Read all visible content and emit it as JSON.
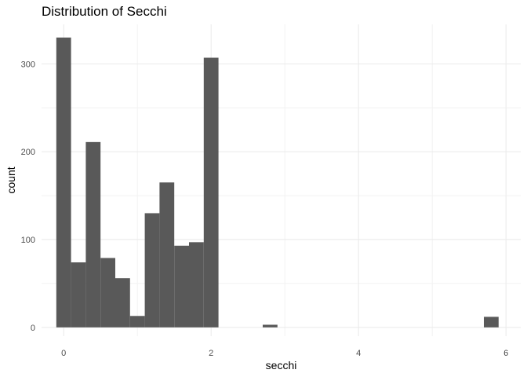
{
  "chart_data": {
    "type": "bar",
    "title": "Distribution of Secchi",
    "xlabel": "secchi",
    "ylabel": "count",
    "xlim": [
      -0.3,
      6.2
    ],
    "ylim": [
      -10,
      345
    ],
    "x_ticks": [
      0,
      2,
      4,
      6
    ],
    "y_ticks": [
      0,
      100,
      200,
      300
    ],
    "grid": true,
    "bar_color": "#595959",
    "bin_width": 0.2,
    "bins": [
      {
        "x": 0.0,
        "count": 330
      },
      {
        "x": 0.2,
        "count": 74
      },
      {
        "x": 0.4,
        "count": 211
      },
      {
        "x": 0.6,
        "count": 79
      },
      {
        "x": 0.8,
        "count": 56
      },
      {
        "x": 1.0,
        "count": 13
      },
      {
        "x": 1.2,
        "count": 130
      },
      {
        "x": 1.4,
        "count": 165
      },
      {
        "x": 1.6,
        "count": 93
      },
      {
        "x": 1.8,
        "count": 97
      },
      {
        "x": 2.0,
        "count": 307
      },
      {
        "x": 2.2,
        "count": 0
      },
      {
        "x": 2.4,
        "count": 0
      },
      {
        "x": 2.6,
        "count": 0
      },
      {
        "x": 2.8,
        "count": 3
      },
      {
        "x": 3.0,
        "count": 0
      },
      {
        "x": 3.2,
        "count": 0
      },
      {
        "x": 3.4,
        "count": 0
      },
      {
        "x": 3.6,
        "count": 0
      },
      {
        "x": 3.8,
        "count": 0
      },
      {
        "x": 4.0,
        "count": 0
      },
      {
        "x": 4.2,
        "count": 0
      },
      {
        "x": 4.4,
        "count": 0
      },
      {
        "x": 4.6,
        "count": 0
      },
      {
        "x": 4.8,
        "count": 0
      },
      {
        "x": 5.0,
        "count": 0
      },
      {
        "x": 5.2,
        "count": 0
      },
      {
        "x": 5.4,
        "count": 0
      },
      {
        "x": 5.6,
        "count": 0
      },
      {
        "x": 5.8,
        "count": 12
      }
    ]
  }
}
